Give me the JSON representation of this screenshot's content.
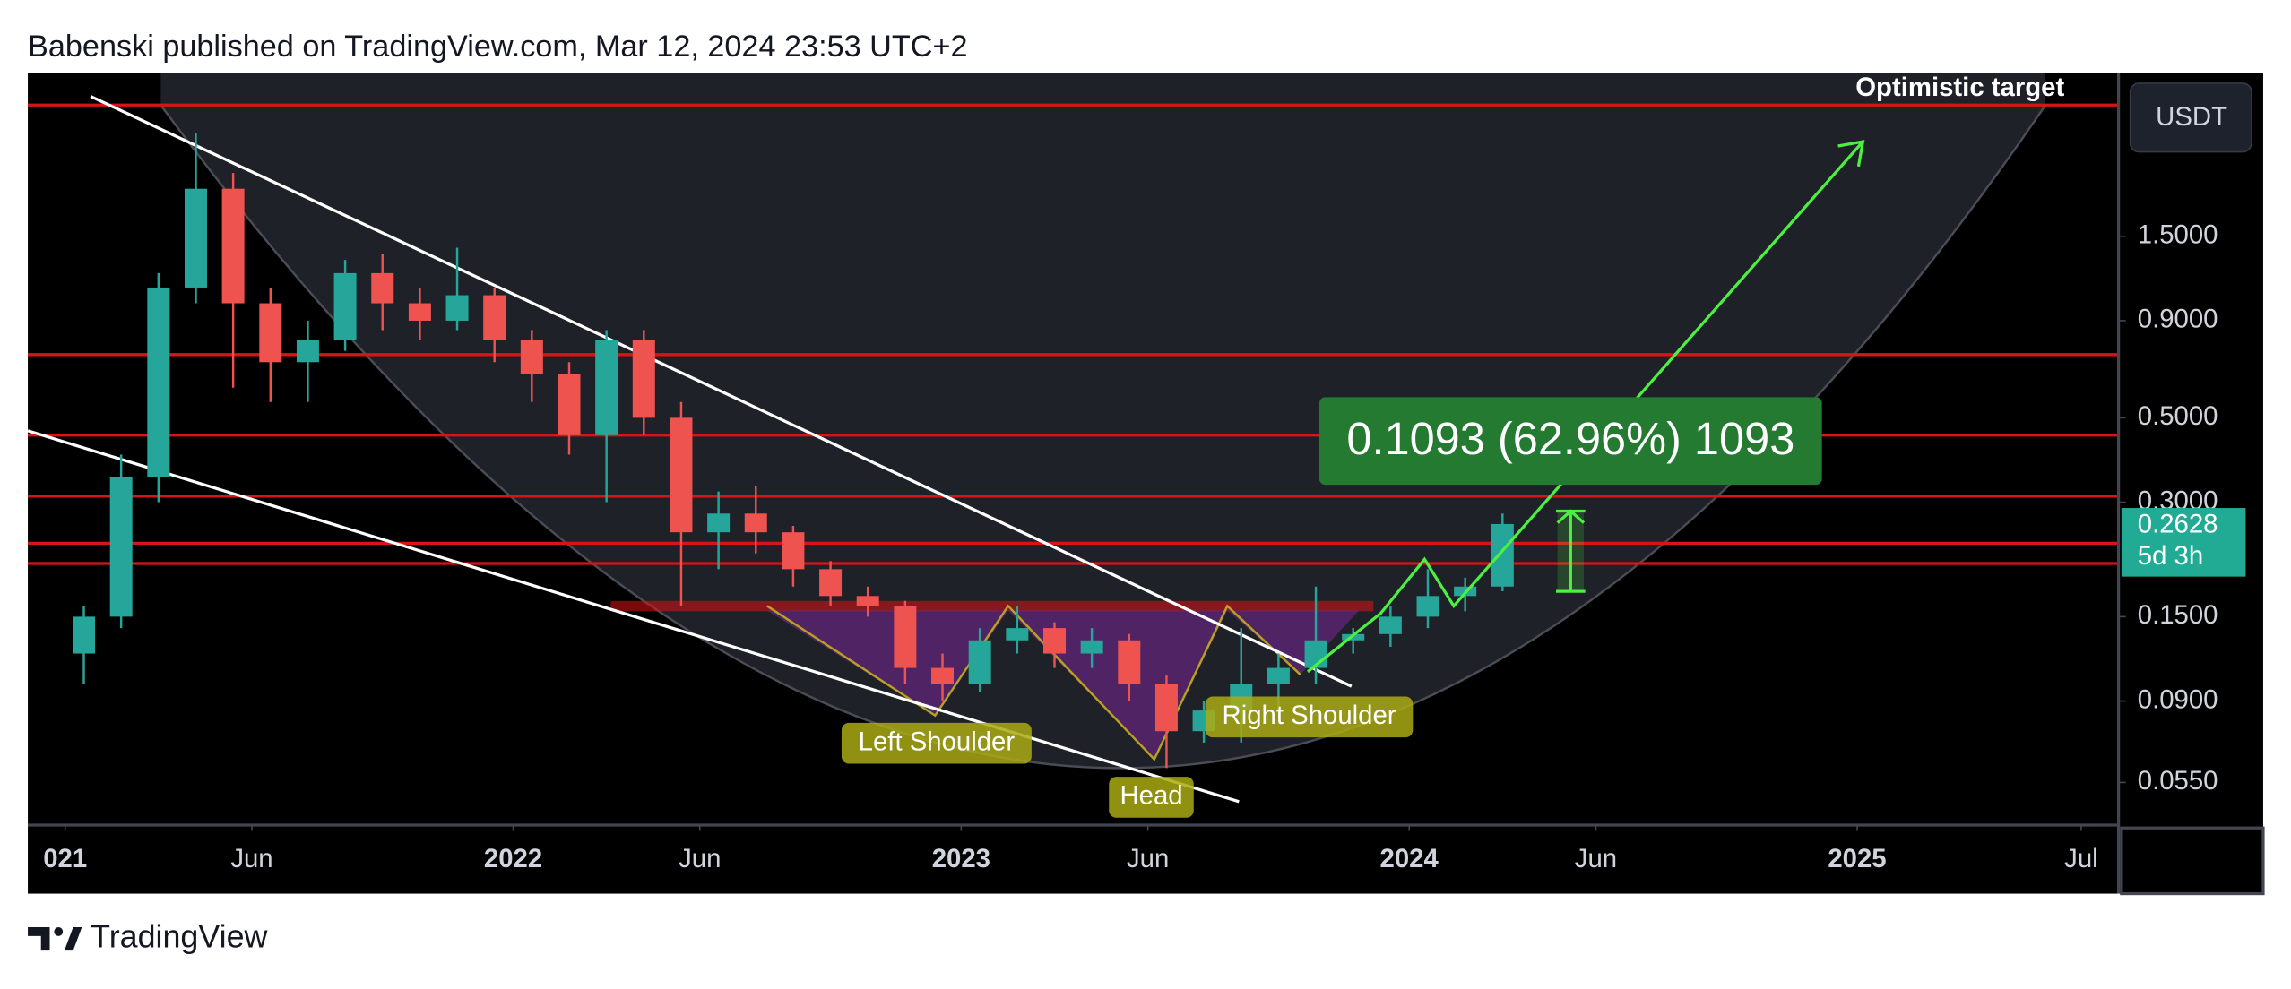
{
  "header": {
    "text": "Babenski published on TradingView.com, Mar 12, 2024 23:53 UTC+2"
  },
  "footer": {
    "brand": "TradingView"
  },
  "chart_data": {
    "type": "candlestick",
    "currency": "USDT",
    "log_scale": true,
    "x": [
      "2021-01",
      "2021-02",
      "2021-03",
      "2021-04",
      "2021-05",
      "2021-06",
      "2021-07",
      "2021-08",
      "2021-09",
      "2021-10",
      "2021-11",
      "2021-12",
      "2022-01",
      "2022-02",
      "2022-03",
      "2022-04",
      "2022-05",
      "2022-06",
      "2022-07",
      "2022-08",
      "2022-09",
      "2022-10",
      "2022-11",
      "2022-12",
      "2023-01",
      "2023-02",
      "2023-03",
      "2023-04",
      "2023-05",
      "2023-06",
      "2023-07",
      "2023-08",
      "2023-09",
      "2023-10",
      "2023-11",
      "2023-12",
      "2024-01",
      "2024-02",
      "2024-03"
    ],
    "series": [
      {
        "up_color": "#26a69a",
        "down_color": "#ef5350",
        "open": [
          0.12,
          0.15,
          0.35,
          1.1,
          2.0,
          1.0,
          0.7,
          0.8,
          1.2,
          1.0,
          0.9,
          1.05,
          0.8,
          0.65,
          0.45,
          0.8,
          0.5,
          0.25,
          0.28,
          0.25,
          0.2,
          0.17,
          0.16,
          0.11,
          0.1,
          0.13,
          0.14,
          0.12,
          0.13,
          0.1,
          0.075,
          0.085,
          0.1,
          0.11,
          0.13,
          0.135,
          0.15,
          0.17,
          0.18
        ],
        "high": [
          0.16,
          0.4,
          1.2,
          2.8,
          2.2,
          1.1,
          0.9,
          1.3,
          1.35,
          1.1,
          1.4,
          1.1,
          0.85,
          0.7,
          0.85,
          0.85,
          0.55,
          0.32,
          0.33,
          0.26,
          0.21,
          0.18,
          0.165,
          0.12,
          0.14,
          0.16,
          0.145,
          0.14,
          0.135,
          0.105,
          0.09,
          0.14,
          0.12,
          0.18,
          0.14,
          0.16,
          0.2,
          0.19,
          0.28
        ],
        "low": [
          0.1,
          0.14,
          0.3,
          1.0,
          0.6,
          0.55,
          0.55,
          0.75,
          0.85,
          0.8,
          0.85,
          0.7,
          0.55,
          0.4,
          0.3,
          0.45,
          0.16,
          0.2,
          0.22,
          0.18,
          0.16,
          0.15,
          0.1,
          0.09,
          0.095,
          0.12,
          0.11,
          0.11,
          0.09,
          0.06,
          0.07,
          0.07,
          0.085,
          0.1,
          0.12,
          0.125,
          0.14,
          0.155,
          0.175
        ],
        "close": [
          0.15,
          0.35,
          1.1,
          2.0,
          1.0,
          0.7,
          0.8,
          1.2,
          1.0,
          0.9,
          1.05,
          0.8,
          0.65,
          0.45,
          0.8,
          0.5,
          0.25,
          0.28,
          0.25,
          0.2,
          0.17,
          0.16,
          0.11,
          0.1,
          0.13,
          0.14,
          0.12,
          0.13,
          0.1,
          0.075,
          0.085,
          0.1,
          0.11,
          0.13,
          0.135,
          0.15,
          0.17,
          0.18,
          0.2628
        ]
      }
    ],
    "xlim": [
      "2020-12",
      "2025-08"
    ],
    "xticks": [
      {
        "value": "2021-01",
        "label": "021"
      },
      {
        "value": "2021-06",
        "label": "Jun"
      },
      {
        "value": "2022-01",
        "label": "2022"
      },
      {
        "value": "2022-06",
        "label": "Jun"
      },
      {
        "value": "2023-01",
        "label": "2023"
      },
      {
        "value": "2023-06",
        "label": "Jun"
      },
      {
        "value": "2024-01",
        "label": "2024"
      },
      {
        "value": "2024-06",
        "label": "Jun"
      },
      {
        "value": "2025-01",
        "label": "2025"
      },
      {
        "value": "2025-07",
        "label": "Jul"
      }
    ],
    "ylim": [
      0.0425,
      4.03
    ],
    "yticks": [
      {
        "value": 1.5,
        "label": "1.5000"
      },
      {
        "value": 0.9,
        "label": "0.9000"
      },
      {
        "value": 0.5,
        "label": "0.5000"
      },
      {
        "value": 0.3,
        "label": "0.3000"
      },
      {
        "value": 0.15,
        "label": "0.1500"
      },
      {
        "value": 0.09,
        "label": "0.0900"
      },
      {
        "value": 0.055,
        "label": "0.0550"
      }
    ],
    "levels": [
      3.32,
      0.733,
      0.45,
      0.311,
      0.234,
      0.207
    ],
    "level_color": "#d81414",
    "support_zone": [
      0.155,
      0.165
    ],
    "last_price": 0.2628,
    "countdown": "5d 3h",
    "annotations": {
      "target": "Optimistic target",
      "measure": "0.1093 (62.96%) 1093",
      "left_shoulder": "Left Shoulder",
      "head": "Head",
      "right_shoulder": "Right Shoulder"
    }
  }
}
